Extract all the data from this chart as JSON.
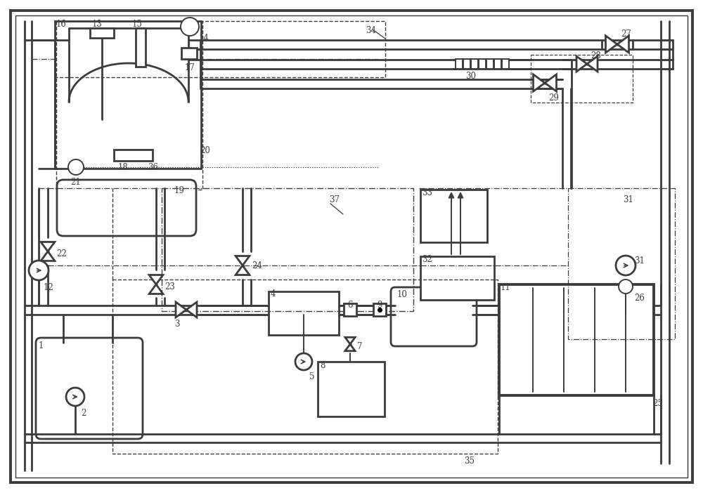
{
  "bg": "#ffffff",
  "lc": "#3c3c3c",
  "lw": 1.4,
  "lw2": 2.0,
  "lw3": 2.8
}
